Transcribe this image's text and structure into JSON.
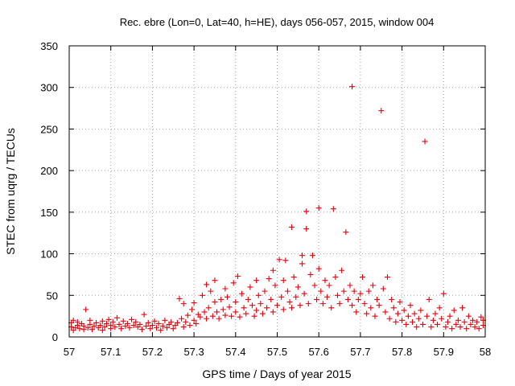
{
  "chart_data": {
    "type": "scatter",
    "title": "Rec. ebre (Lon=0, Lat=40, h=HE), days 056-057, 2015, window 004",
    "xlabel": "GPS time / Days of year 2015",
    "ylabel": "STEC from uqrg / TECUs",
    "xlim": [
      57,
      58
    ],
    "ylim": [
      0,
      350
    ],
    "x_ticks": [
      57,
      57.1,
      57.2,
      57.3,
      57.4,
      57.5,
      57.6,
      57.7,
      57.8,
      57.9,
      58
    ],
    "x_tick_labels": [
      "57",
      "57.1",
      "57.2",
      "57.3",
      "57.4",
      "57.5",
      "57.6",
      "57.7",
      "57.8",
      "57.9",
      "58"
    ],
    "y_ticks": [
      0,
      50,
      100,
      150,
      200,
      250,
      300,
      350
    ],
    "y_tick_labels": [
      "0",
      "50",
      "100",
      "150",
      "200",
      "250",
      "300",
      "350"
    ],
    "grid": true,
    "marker": "+",
    "marker_color": "#e8000b",
    "series": [
      {
        "points": [
          [
            57.005,
            12
          ],
          [
            57.005,
            17
          ],
          [
            57.01,
            8
          ],
          [
            57.01,
            20
          ],
          [
            57.015,
            11
          ],
          [
            57.02,
            14
          ],
          [
            57.02,
            18
          ],
          [
            57.025,
            10
          ],
          [
            57.03,
            16
          ],
          [
            57.035,
            9
          ],
          [
            57.035,
            13
          ],
          [
            57.04,
            33
          ],
          [
            57.045,
            11
          ],
          [
            57.05,
            15
          ],
          [
            57.05,
            20
          ],
          [
            57.055,
            9
          ],
          [
            57.06,
            13
          ],
          [
            57.065,
            17
          ],
          [
            57.07,
            11
          ],
          [
            57.075,
            14
          ],
          [
            57.08,
            8
          ],
          [
            57.08,
            19
          ],
          [
            57.085,
            12
          ],
          [
            57.09,
            16
          ],
          [
            57.095,
            21
          ],
          [
            57.1,
            10
          ],
          [
            57.1,
            14
          ],
          [
            57.105,
            18
          ],
          [
            57.11,
            12
          ],
          [
            57.115,
            23
          ],
          [
            57.12,
            15
          ],
          [
            57.125,
            10
          ],
          [
            57.13,
            19
          ],
          [
            57.135,
            13
          ],
          [
            57.14,
            16
          ],
          [
            57.145,
            11
          ],
          [
            57.15,
            21
          ],
          [
            57.155,
            14
          ],
          [
            57.16,
            18
          ],
          [
            57.165,
            12
          ],
          [
            57.17,
            15
          ],
          [
            57.175,
            9
          ],
          [
            57.18,
            27
          ],
          [
            57.185,
            13
          ],
          [
            57.19,
            17
          ],
          [
            57.195,
            10
          ],
          [
            57.2,
            14
          ],
          [
            57.205,
            19
          ],
          [
            57.21,
            11
          ],
          [
            57.215,
            16
          ],
          [
            57.22,
            8
          ],
          [
            57.225,
            13
          ],
          [
            57.23,
            20
          ],
          [
            57.235,
            11
          ],
          [
            57.24,
            15
          ],
          [
            57.245,
            18
          ],
          [
            57.25,
            10
          ],
          [
            57.255,
            14
          ],
          [
            57.26,
            17
          ],
          [
            57.265,
            46
          ],
          [
            57.27,
            22
          ],
          [
            57.275,
            12
          ],
          [
            57.275,
            40
          ],
          [
            57.28,
            18
          ],
          [
            57.285,
            26
          ],
          [
            57.29,
            14
          ],
          [
            57.295,
            33
          ],
          [
            57.3,
            20
          ],
          [
            57.3,
            41
          ],
          [
            57.305,
            16
          ],
          [
            57.31,
            27
          ],
          [
            57.315,
            24
          ],
          [
            57.32,
            50
          ],
          [
            57.325,
            30
          ],
          [
            57.33,
            22
          ],
          [
            57.33,
            63
          ],
          [
            57.335,
            35
          ],
          [
            57.34,
            55
          ],
          [
            57.345,
            25
          ],
          [
            57.35,
            42
          ],
          [
            57.35,
            68
          ],
          [
            57.355,
            30
          ],
          [
            57.36,
            22
          ],
          [
            57.365,
            45
          ],
          [
            57.37,
            33
          ],
          [
            57.375,
            26
          ],
          [
            57.375,
            58
          ],
          [
            57.38,
            48
          ],
          [
            57.385,
            36
          ],
          [
            57.39,
            25
          ],
          [
            57.395,
            65
          ],
          [
            57.4,
            42
          ],
          [
            57.4,
            30
          ],
          [
            57.405,
            73
          ],
          [
            57.41,
            24
          ],
          [
            57.415,
            52
          ],
          [
            57.42,
            35
          ],
          [
            57.425,
            28
          ],
          [
            57.43,
            45
          ],
          [
            57.435,
            60
          ],
          [
            57.44,
            38
          ],
          [
            57.445,
            25
          ],
          [
            57.45,
            32
          ],
          [
            57.45,
            68
          ],
          [
            57.455,
            50
          ],
          [
            57.46,
            40
          ],
          [
            57.465,
            28
          ],
          [
            57.47,
            55
          ],
          [
            57.475,
            35
          ],
          [
            57.48,
            70
          ],
          [
            57.485,
            45
          ],
          [
            57.49,
            30
          ],
          [
            57.49,
            80
          ],
          [
            57.495,
            62
          ],
          [
            57.5,
            38
          ],
          [
            57.505,
            93
          ],
          [
            57.51,
            48
          ],
          [
            57.515,
            33
          ],
          [
            57.515,
            68
          ],
          [
            57.52,
            92
          ],
          [
            57.525,
            55
          ],
          [
            57.53,
            42
          ],
          [
            57.535,
            35
          ],
          [
            57.535,
            132
          ],
          [
            57.54,
            72
          ],
          [
            57.545,
            48
          ],
          [
            57.55,
            60
          ],
          [
            57.555,
            38
          ],
          [
            57.56,
            98
          ],
          [
            57.56,
            88
          ],
          [
            57.565,
            52
          ],
          [
            57.57,
            151
          ],
          [
            57.57,
            130
          ],
          [
            57.575,
            40
          ],
          [
            57.58,
            75
          ],
          [
            57.585,
            98
          ],
          [
            57.59,
            62
          ],
          [
            57.595,
            45
          ],
          [
            57.6,
            155
          ],
          [
            57.6,
            82
          ],
          [
            57.605,
            55
          ],
          [
            57.61,
            40
          ],
          [
            57.615,
            68
          ],
          [
            57.62,
            48
          ],
          [
            57.625,
            62
          ],
          [
            57.63,
            35
          ],
          [
            57.635,
            154
          ],
          [
            57.64,
            72
          ],
          [
            57.645,
            50
          ],
          [
            57.65,
            40
          ],
          [
            57.655,
            80
          ],
          [
            57.66,
            55
          ],
          [
            57.665,
            126
          ],
          [
            57.67,
            45
          ],
          [
            57.675,
            62
          ],
          [
            57.68,
            301
          ],
          [
            57.68,
            38
          ],
          [
            57.685,
            55
          ],
          [
            57.69,
            30
          ],
          [
            57.695,
            45
          ],
          [
            57.7,
            52
          ],
          [
            57.705,
            72
          ],
          [
            57.71,
            40
          ],
          [
            57.715,
            28
          ],
          [
            57.72,
            55
          ],
          [
            57.725,
            35
          ],
          [
            57.73,
            62
          ],
          [
            57.735,
            25
          ],
          [
            57.74,
            45
          ],
          [
            57.745,
            38
          ],
          [
            57.75,
            272
          ],
          [
            57.755,
            58
          ],
          [
            57.76,
            30
          ],
          [
            57.765,
            72
          ],
          [
            57.77,
            22
          ],
          [
            57.775,
            45
          ],
          [
            57.78,
            35
          ],
          [
            57.785,
            18
          ],
          [
            57.79,
            28
          ],
          [
            57.795,
            42
          ],
          [
            57.8,
            20
          ],
          [
            57.805,
            32
          ],
          [
            57.81,
            15
          ],
          [
            57.815,
            25
          ],
          [
            57.82,
            38
          ],
          [
            57.825,
            18
          ],
          [
            57.83,
            28
          ],
          [
            57.835,
            12
          ],
          [
            57.84,
            22
          ],
          [
            57.845,
            32
          ],
          [
            57.85,
            15
          ],
          [
            57.855,
            235
          ],
          [
            57.86,
            25
          ],
          [
            57.865,
            45
          ],
          [
            57.87,
            12
          ],
          [
            57.875,
            20
          ],
          [
            57.88,
            28
          ],
          [
            57.885,
            15
          ],
          [
            57.89,
            35
          ],
          [
            57.895,
            22
          ],
          [
            57.9,
            52
          ],
          [
            57.905,
            12
          ],
          [
            57.91,
            18
          ],
          [
            57.915,
            25
          ],
          [
            57.92,
            10
          ],
          [
            57.925,
            32
          ],
          [
            57.93,
            15
          ],
          [
            57.935,
            20
          ],
          [
            57.94,
            12
          ],
          [
            57.945,
            35
          ],
          [
            57.95,
            18
          ],
          [
            57.955,
            10
          ],
          [
            57.96,
            25
          ],
          [
            57.965,
            15
          ],
          [
            57.97,
            20
          ],
          [
            57.975,
            12
          ],
          [
            57.98,
            18
          ],
          [
            57.985,
            10
          ],
          [
            57.99,
            24
          ],
          [
            57.995,
            14
          ],
          [
            57.995,
            20
          ]
        ]
      }
    ]
  }
}
